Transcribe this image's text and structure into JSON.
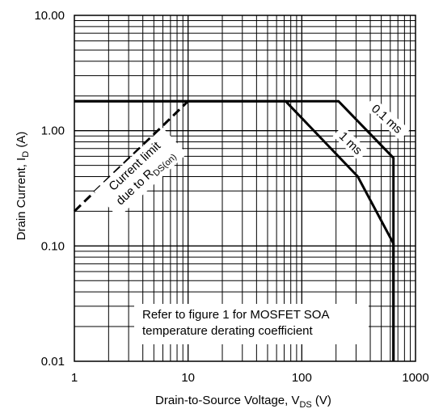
{
  "chart_data": {
    "type": "line",
    "title": "",
    "x_scale": "log",
    "y_scale": "log",
    "xlim": [
      1,
      1000
    ],
    "ylim": [
      0.01,
      10
    ],
    "grid": true,
    "x_ticks": [
      "1",
      "10",
      "100",
      "1000"
    ],
    "y_ticks": [
      "10.00",
      "1.00",
      "0.10",
      "0.01"
    ],
    "xlabel": {
      "main": "Drain-to-Source Voltage, V",
      "sub": "DS",
      "unit": " (V)"
    },
    "ylabel": {
      "main": "Drain Current, I",
      "sub": "D",
      "unit": " (A)"
    },
    "series": [
      {
        "name": "Current limit due to R_DS(on)",
        "style": "dashed",
        "x": [
          1,
          10
        ],
        "y": [
          0.2,
          1.8
        ]
      },
      {
        "name": "0.1 ms",
        "style": "solid",
        "x": [
          1,
          210,
          640,
          640
        ],
        "y": [
          1.8,
          1.8,
          0.58,
          0.01
        ]
      },
      {
        "name": "1 ms",
        "style": "solid",
        "x": [
          1,
          72,
          310,
          640,
          640
        ],
        "y": [
          1.8,
          1.8,
          0.4,
          0.105,
          0.01
        ]
      }
    ],
    "annotations": {
      "limit_line1": "Current limit",
      "limit_line2_main": "due to R",
      "limit_line2_sub": "DS(on)",
      "ms01": "0.1 ms",
      "ms1": "1 ms",
      "note_line1": "Refer to figure 1 for MOSFET SOA",
      "note_line2": "temperature derating coefficient"
    }
  }
}
